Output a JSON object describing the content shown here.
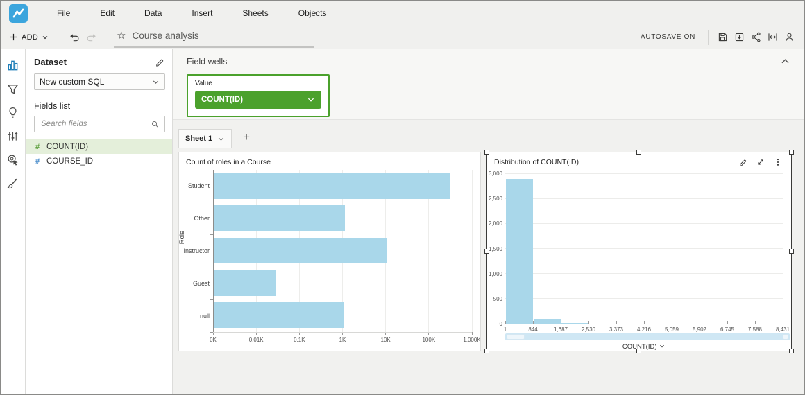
{
  "menu_bar": {
    "items": [
      "File",
      "Edit",
      "Data",
      "Insert",
      "Sheets",
      "Objects"
    ]
  },
  "toolbar": {
    "add_label": "ADD",
    "analysis_title": "Course analysis",
    "autosave_label": "AUTOSAVE ON"
  },
  "glyphs": {
    "star": "☆",
    "plus": "+",
    "numeric": "#"
  },
  "left_rail": {
    "items": [
      "visualize",
      "filter",
      "insights",
      "parameters",
      "actions",
      "themes"
    ],
    "selected": "visualize"
  },
  "dataset_panel": {
    "title": "Dataset",
    "selected_dataset": "New custom SQL",
    "fields_list_label": "Fields list",
    "search_placeholder": "Search fields",
    "fields": [
      {
        "name": "COUNT(ID)",
        "type": "numeric",
        "highlighted": true
      },
      {
        "name": "COURSE_ID",
        "type": "numeric",
        "highlighted": false
      }
    ]
  },
  "field_wells": {
    "section_label": "Field wells",
    "wells": [
      {
        "label": "Value",
        "value": "COUNT(ID)"
      }
    ]
  },
  "sheet_bar": {
    "tabs": [
      {
        "label": "Sheet 1",
        "active": true
      }
    ],
    "add_label": "+"
  },
  "chart_data": [
    {
      "type": "bar",
      "orientation": "horizontal",
      "title": "Count of roles in a Course",
      "categories": [
        "Student",
        "Other",
        "Instructor",
        "Guest",
        "null"
      ],
      "values": [
        295000,
        1100,
        10000,
        28,
        1000
      ],
      "ylabel": "Role",
      "xlabel": "",
      "x_scale": "log",
      "x_ticks": [
        "0K",
        "0.01K",
        "0.1K",
        "1K",
        "10K",
        "100K",
        "1,000K"
      ],
      "x_tick_values": [
        1,
        10,
        100,
        1000,
        10000,
        100000,
        1000000
      ],
      "bar_color": "#a9d7ea",
      "grid": true,
      "legend": "none"
    },
    {
      "type": "histogram",
      "title": "Distribution of COUNT(ID)",
      "xlabel": "COUNT(ID)",
      "bin_edge_labels": [
        "1",
        "844",
        "1,687",
        "2,530",
        "3,373",
        "4,216",
        "5,059",
        "5,902",
        "6,745",
        "7,588",
        "8,431"
      ],
      "values": [
        2875,
        80,
        8,
        3,
        1,
        1,
        1,
        1,
        1,
        1
      ],
      "y_ticks": [
        "0",
        "500",
        "1,000",
        "1,500",
        "2,000",
        "2,500",
        "3,000"
      ],
      "y_tick_values": [
        0,
        500,
        1000,
        1500,
        2000,
        2500,
        3000
      ],
      "ylim": [
        0,
        3000
      ],
      "bar_color": "#a9d7ea",
      "grid": true,
      "selected": true,
      "has_range_slider": true
    }
  ],
  "colors": {
    "accent_blue": "#3ba5dd",
    "rail_selected_blue": "#1f7fb8",
    "accent_green": "#4ba12c",
    "field_highlight_green": "#e4efda",
    "bar_fill": "#a9d7ea",
    "chrome_bg": "#f0f0ee"
  },
  "icons": [
    "quicksight-logo",
    "add-icon",
    "chevron-down-icon",
    "undo-icon",
    "redo-icon",
    "star-icon",
    "save-icon",
    "export-icon",
    "share-icon",
    "fit-width-icon",
    "user-icon",
    "visualize-icon",
    "filter-icon",
    "insights-icon",
    "parameters-icon",
    "actions-icon",
    "themes-icon",
    "edit-pencil-icon",
    "search-icon",
    "numeric-field-icon",
    "chevron-up-icon",
    "plus-icon",
    "maximize-icon",
    "menu-kebab-icon"
  ]
}
